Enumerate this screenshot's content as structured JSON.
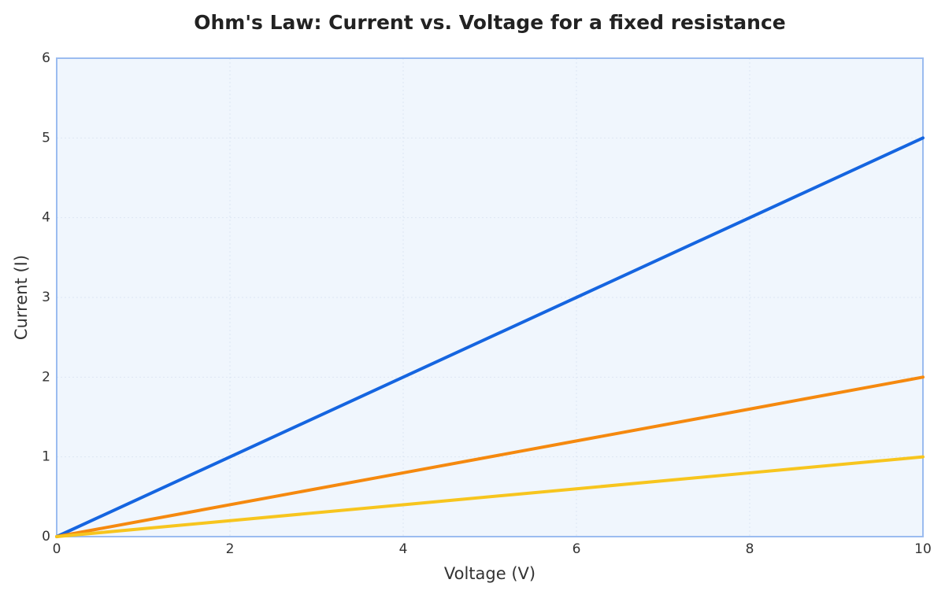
{
  "chart_data": {
    "type": "line",
    "title": "Ohm's Law: Current vs. Voltage for a fixed resistance",
    "x_label": "Voltage (V)",
    "y_label": "Current (I)",
    "x": [
      0,
      2,
      4,
      6,
      8,
      10
    ],
    "series": [
      {
        "color": "#1565e0",
        "values": [
          0,
          1,
          2,
          3,
          4,
          5
        ]
      },
      {
        "color": "#f5890f",
        "values": [
          0,
          0.4,
          0.8,
          1.2,
          1.6,
          2
        ]
      },
      {
        "color": "#f7c51e",
        "values": [
          0,
          0.2,
          0.4,
          0.6,
          0.8,
          1
        ]
      }
    ],
    "xlim": [
      0,
      10
    ],
    "xticks": [
      0,
      2,
      4,
      6,
      8,
      10
    ],
    "ylim": [
      0,
      6
    ],
    "yticks": [
      0,
      1,
      2,
      3,
      4,
      5,
      6
    ],
    "grid": true
  }
}
